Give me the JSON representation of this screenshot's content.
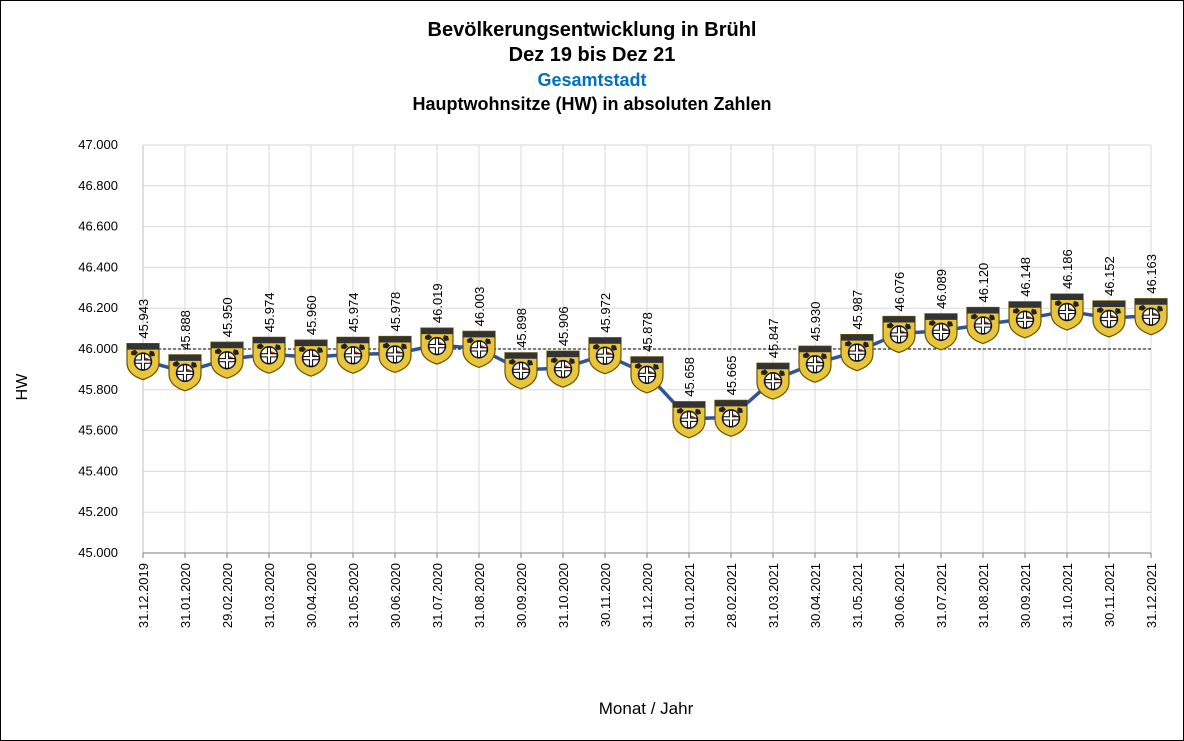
{
  "chart_data": {
    "type": "line",
    "title_lines": [
      "Bevölkerungsentwicklung in Brühl",
      "Dez 19 bis Dez 21"
    ],
    "subtitle": "Gesamtstadt",
    "subtitle2": "Hauptwohnsitze (HW) in absoluten Zahlen",
    "xlabel": "Monat / Jahr",
    "ylabel": "HW",
    "ylim": [
      45000,
      47000
    ],
    "ytick_labels": [
      "45.000",
      "45.200",
      "45.400",
      "45.600",
      "45.800",
      "46.000",
      "46.200",
      "46.400",
      "46.600",
      "46.800",
      "47.000"
    ],
    "reference_line": 46000,
    "categories": [
      "31.12.2019",
      "31.01.2020",
      "29.02.2020",
      "31.03.2020",
      "30.04.2020",
      "31.05.2020",
      "30.06.2020",
      "31.07.2020",
      "31.08.2020",
      "30.09.2020",
      "31.10.2020",
      "30.11.2020",
      "31.12.2020",
      "31.01.2021",
      "28.02.2021",
      "31.03.2021",
      "30.04.2021",
      "31.05.2021",
      "30.06.2021",
      "31.07.2021",
      "31.08.2021",
      "30.09.2021",
      "31.10.2021",
      "30.11.2021",
      "31.12.2021"
    ],
    "values": [
      45943,
      45888,
      45950,
      45974,
      45960,
      45974,
      45978,
      46019,
      46003,
      45898,
      45906,
      45972,
      45878,
      45658,
      45665,
      45847,
      45930,
      45987,
      46076,
      46089,
      46120,
      46148,
      46186,
      46152,
      46163
    ],
    "value_labels": [
      "45.943",
      "45.888",
      "45.950",
      "45.974",
      "45.960",
      "45.974",
      "45.978",
      "46.019",
      "46.003",
      "45.898",
      "45.906",
      "45.972",
      "45.878",
      "45.658",
      "45.665",
      "45.847",
      "45.930",
      "45.987",
      "46.076",
      "46.089",
      "46.120",
      "46.148",
      "46.186",
      "46.152",
      "46.163"
    ],
    "grid": true,
    "marker": "coat-of-arms",
    "colors": {
      "line": "#2f5597",
      "grid": "#d9d9d9",
      "subtitle": "#0070c0",
      "marker_gold": "#e8c53a",
      "marker_black": "#222222",
      "marker_red": "#c0392b"
    }
  }
}
